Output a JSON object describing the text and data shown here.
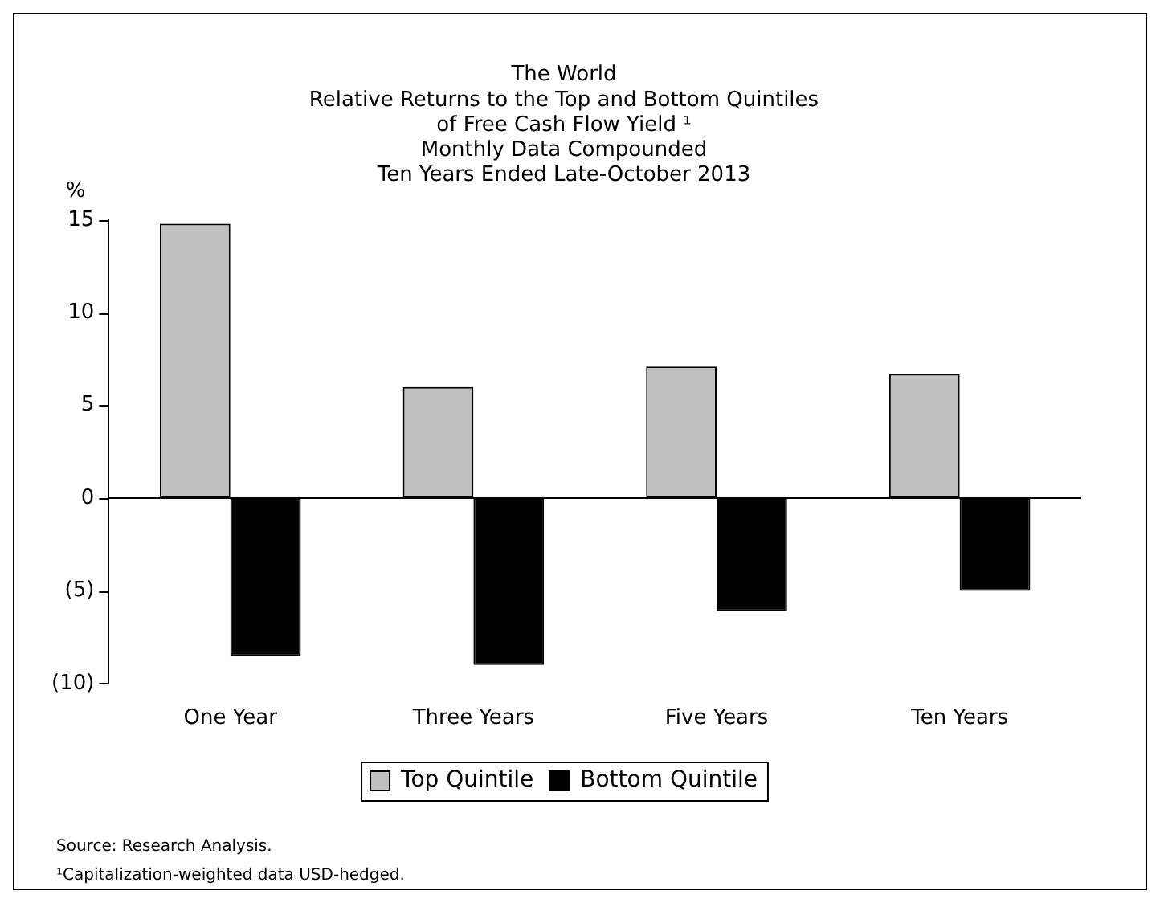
{
  "chart_data": {
    "type": "bar",
    "title": "The World\nRelative Returns to the Top and Bottom Quintiles\nof Free Cash Flow Yield ¹\nMonthly Data Compounded\nTen Years Ended Late-October 2013",
    "ylabel": "%",
    "categories": [
      "One Year",
      "Three Years",
      "Five Years",
      "Ten Years"
    ],
    "series": [
      {
        "name": "Top Quintile",
        "color": "#c0c0c0",
        "values": [
          14.8,
          6.0,
          7.1,
          6.7
        ]
      },
      {
        "name": "Bottom Quintile",
        "color": "#000000",
        "values": [
          -8.5,
          -9.0,
          -6.1,
          -5.0
        ]
      }
    ],
    "ylim": [
      -10,
      15
    ],
    "yticks": [
      {
        "value": -10,
        "label": "(10)"
      },
      {
        "value": -5,
        "label": "(5)"
      },
      0,
      5,
      10,
      15
    ],
    "legend": "bottom",
    "annotations": [
      "Source: Research Analysis.",
      "¹Capitalization-weighted data USD-hedged."
    ]
  }
}
